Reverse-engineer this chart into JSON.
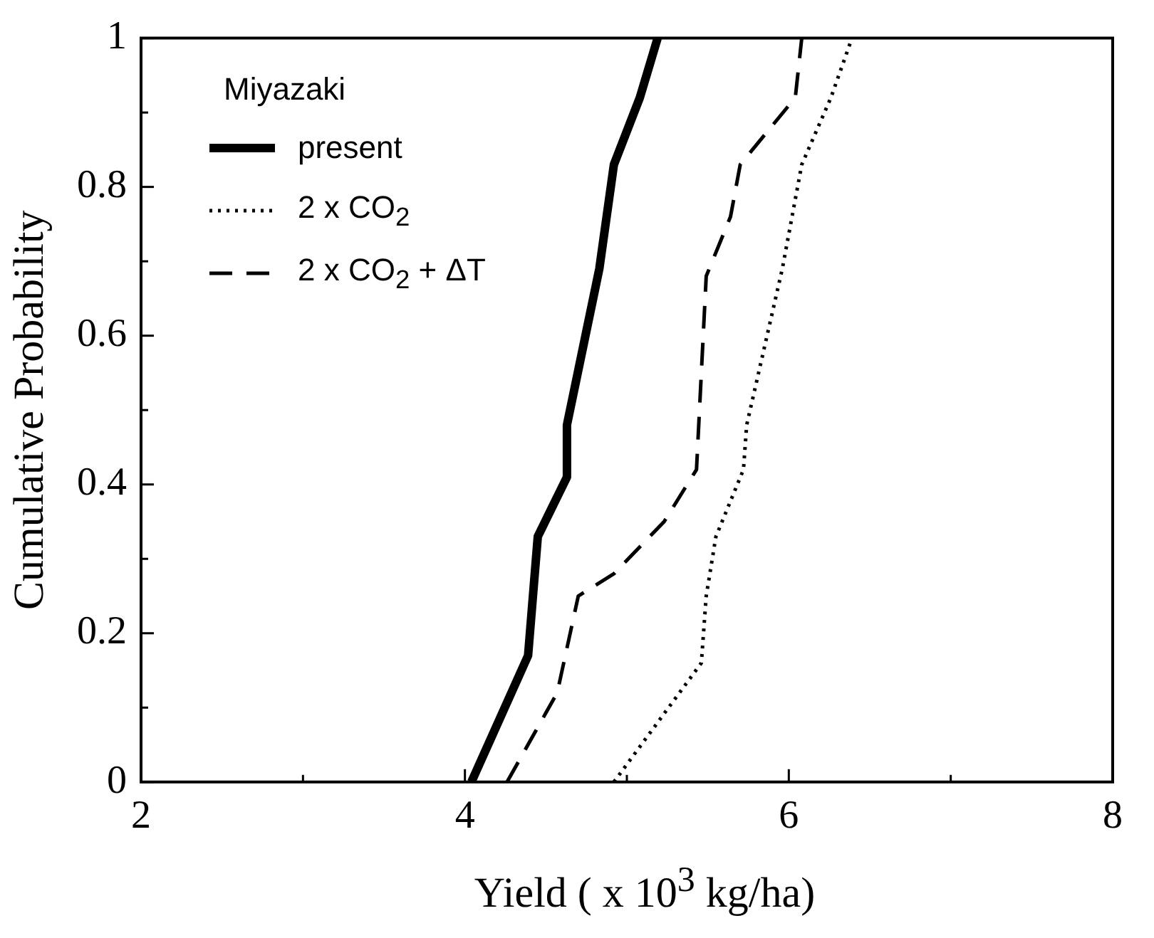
{
  "chart_data": {
    "type": "line",
    "xlabel": "Yield  ( x 10$^{3}$ kg/ha)",
    "ylabel": "Cumulative Probability",
    "legend_title": "Miyazaki",
    "legend": "top left",
    "grid": false,
    "marker": "none",
    "xlim": [
      2,
      8
    ],
    "xticks": [
      2,
      {
        "value": 3,
        "label": null
      },
      4,
      {
        "value": 5,
        "label": null
      },
      6,
      {
        "value": 7,
        "label": null
      },
      8
    ],
    "ylim": [
      0,
      1
    ],
    "yticks": [
      0,
      {
        "value": 0.1,
        "label": null
      },
      0.2,
      {
        "value": 0.3,
        "label": null
      },
      0.4,
      {
        "value": 0.5,
        "label": null
      },
      0.6,
      {
        "value": 0.7,
        "label": null
      },
      0.8,
      {
        "value": 0.9,
        "label": null
      },
      1
    ],
    "series": [
      {
        "name": "present",
        "color": "#000000",
        "line_style": "solid",
        "x": [
          4.04,
          4.39,
          4.45,
          4.63,
          4.63,
          4.83,
          4.92,
          5.08,
          5.19
        ],
        "values": [
          0,
          0.17,
          0.33,
          0.41,
          0.48,
          0.69,
          0.83,
          0.92,
          1
        ]
      },
      {
        "name": "2 x CO$_{2}$",
        "color": "#000000",
        "line_style": "dotted",
        "x": [
          4.92,
          5.46,
          5.49,
          5.55,
          5.72,
          5.74,
          5.96,
          6.08,
          6.26,
          6.39
        ],
        "values": [
          0,
          0.16,
          0.25,
          0.33,
          0.42,
          0.48,
          0.69,
          0.83,
          0.92,
          1
        ]
      },
      {
        "name": "2 x CO$_{2}$ + ΔT",
        "color": "#000000",
        "line_style": "dashed",
        "x": [
          4.26,
          4.57,
          4.7,
          4.92,
          5.23,
          5.43,
          5.49,
          5.64,
          5.7,
          6.04,
          6.08
        ],
        "values": [
          0,
          0.12,
          0.25,
          0.28,
          0.35,
          0.42,
          0.68,
          0.76,
          0.83,
          0.92,
          1
        ]
      }
    ]
  }
}
